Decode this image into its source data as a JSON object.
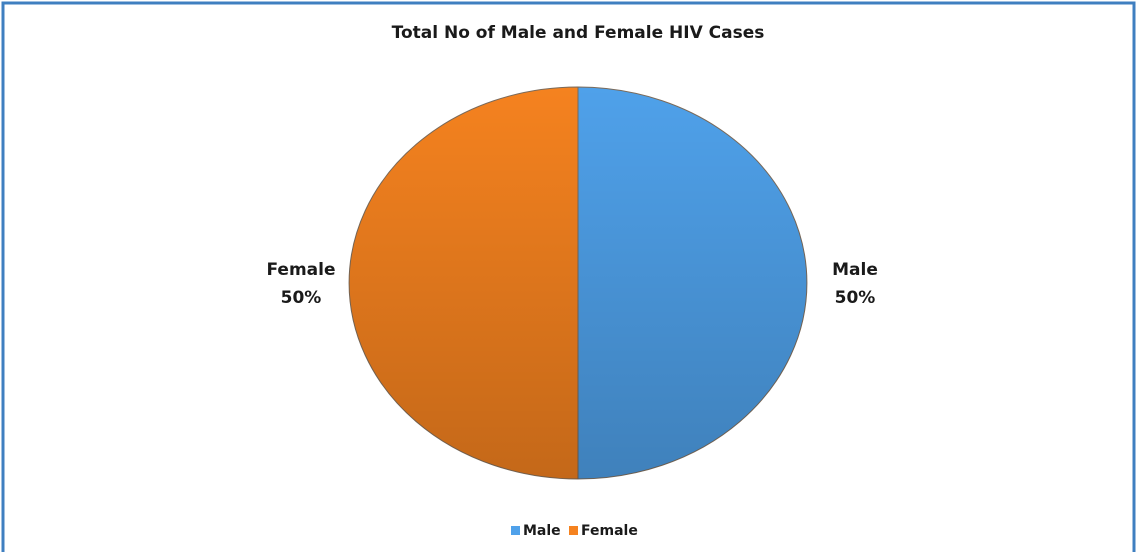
{
  "chart_data": {
    "type": "pie",
    "title": "Total No of Male and Female HIV Cases",
    "categories": [
      "Male",
      "Female"
    ],
    "values": [
      50,
      50
    ],
    "value_labels": [
      "50%",
      "50%"
    ],
    "colors": [
      "#4fa1ea",
      "#f5821f"
    ],
    "legend": "bottom"
  }
}
